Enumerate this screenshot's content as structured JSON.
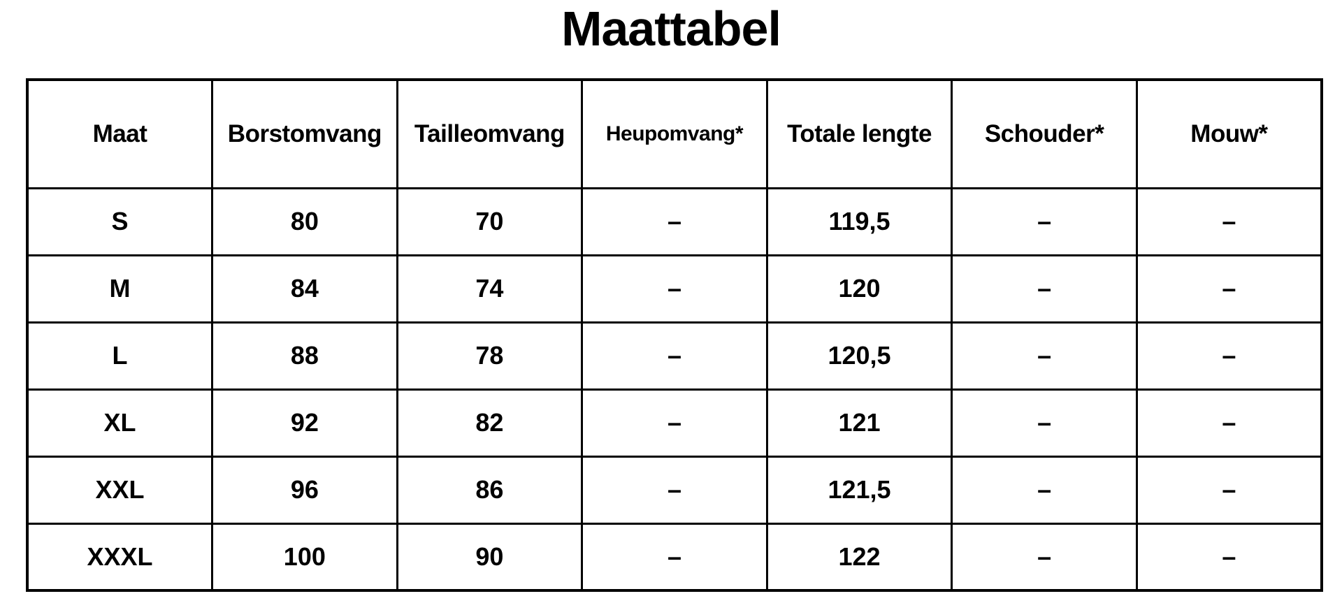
{
  "title": "Maattabel",
  "chart_data": {
    "type": "table",
    "title": "Maattabel",
    "columns": [
      "Maat",
      "Borstomvang",
      "Tailleomvang",
      "Heupomvang*",
      "Totale lengte",
      "Schouder*",
      "Mouw*"
    ],
    "rows": [
      [
        "S",
        "80",
        "70",
        "–",
        "119,5",
        "–",
        "–"
      ],
      [
        "M",
        "84",
        "74",
        "–",
        "120",
        "–",
        "–"
      ],
      [
        "L",
        "88",
        "78",
        "–",
        "120,5",
        "–",
        "–"
      ],
      [
        "XL",
        "92",
        "82",
        "–",
        "121",
        "–",
        "–"
      ],
      [
        "XXL",
        "96",
        "86",
        "–",
        "121,5",
        "–",
        "–"
      ],
      [
        "XXXL",
        "100",
        "90",
        "–",
        "122",
        "–",
        "–"
      ]
    ]
  },
  "colors": {
    "text": "#000000",
    "border": "#000000",
    "background": "#ffffff"
  }
}
